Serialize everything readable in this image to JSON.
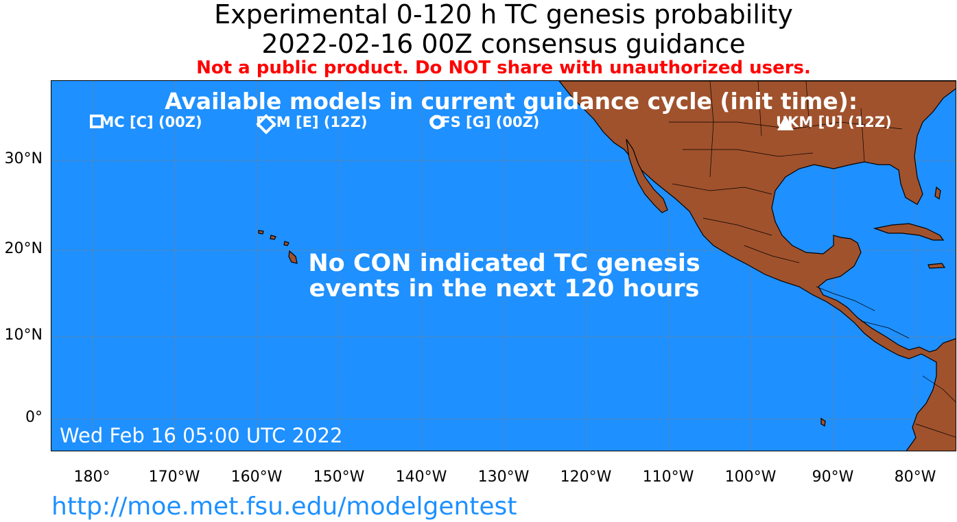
{
  "header": {
    "title_line1": "Experimental 0-120 h TC genesis probability",
    "title_line2": "2022-02-16 00Z consensus guidance",
    "warning": "Not a public product. Do NOT share with unauthorized users."
  },
  "map": {
    "available_models_heading": "Available models in current guidance cycle (init time):",
    "models": [
      {
        "label": "CMC [C] (00Z)",
        "symbol": "square-icon"
      },
      {
        "label": "ECM [E] (12Z)",
        "symbol": "diamond-icon"
      },
      {
        "label": "GFS [G] (00Z)",
        "symbol": "circle-icon"
      },
      {
        "label": "UKM [U] (12Z)",
        "symbol": "triangle-icon"
      }
    ],
    "message_line1": "No CON indicated TC genesis",
    "message_line2": "events in the next 120 hours",
    "timestamp": "Wed Feb 16 05:00 UTC 2022",
    "ocean_color": "#1e90ff",
    "land_color": "#a0522d",
    "latitude_labels": [
      "30°N",
      "20°N",
      "10°N",
      "0°"
    ],
    "longitude_labels": [
      "180°",
      "170°W",
      "160°W",
      "150°W",
      "140°W",
      "130°W",
      "120°W",
      "110°W",
      "100°W",
      "90°W",
      "80°W"
    ]
  },
  "footer": {
    "url": "http://moe.met.fsu.edu/modelgentest"
  }
}
